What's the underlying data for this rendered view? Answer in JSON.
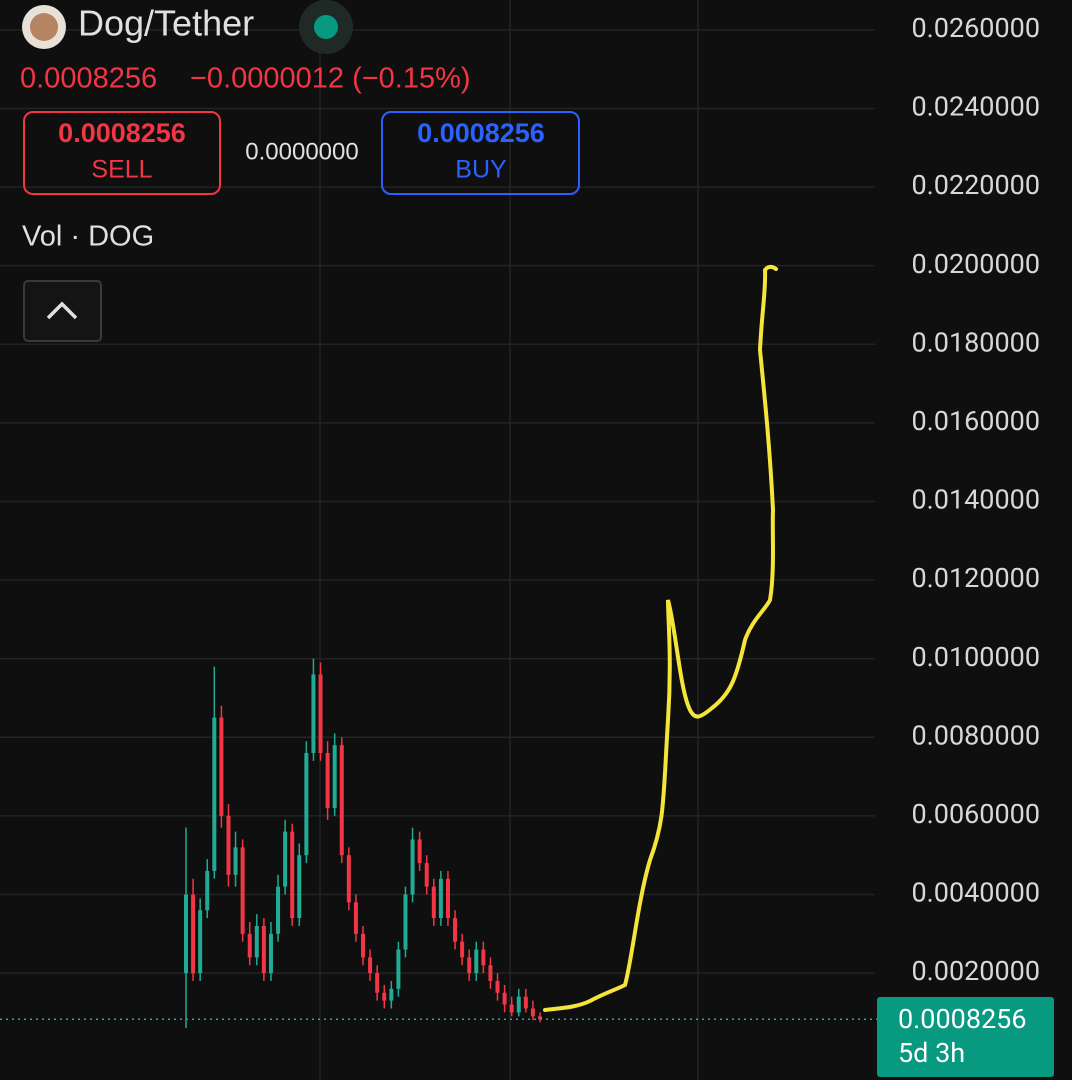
{
  "header": {
    "symbol": "Dog/Tether",
    "price": "0.0008256",
    "change": "−0.0000012 (−0.15%)",
    "sell_price": "0.0008256",
    "sell_label": "SELL",
    "spread": "0.0000000",
    "buy_price": "0.0008256",
    "buy_label": "BUY",
    "volume_label": "Vol · DOG"
  },
  "chart_data": {
    "type": "candlestick",
    "up_color": "#22ab94",
    "down_color": "#f23645",
    "open": [
      0.002,
      0.004,
      0.002,
      0.0036,
      0.0046,
      0.0085,
      0.006,
      0.0045,
      0.0052,
      0.003,
      0.0024,
      0.0032,
      0.002,
      0.003,
      0.0042,
      0.0056,
      0.0034,
      0.005,
      0.0076,
      0.0096,
      0.0076,
      0.0062,
      0.0078,
      0.005,
      0.0038,
      0.003,
      0.0024,
      0.002,
      0.0015,
      0.0013,
      0.0016,
      0.0026,
      0.004,
      0.0054,
      0.0048,
      0.0042,
      0.0034,
      0.0044,
      0.0034,
      0.0028,
      0.0024,
      0.002,
      0.0026,
      0.0022,
      0.0018,
      0.0015,
      0.0012,
      0.001,
      0.0014,
      0.0011,
      0.0009
    ],
    "high": [
      0.0057,
      0.0044,
      0.0039,
      0.0049,
      0.0098,
      0.0088,
      0.0063,
      0.0056,
      0.0054,
      0.0033,
      0.0035,
      0.0034,
      0.0033,
      0.0045,
      0.0059,
      0.0058,
      0.0053,
      0.0079,
      0.01,
      0.0099,
      0.0079,
      0.0081,
      0.008,
      0.0052,
      0.004,
      0.0032,
      0.0026,
      0.0022,
      0.0017,
      0.0018,
      0.0028,
      0.0042,
      0.0057,
      0.0056,
      0.005,
      0.0044,
      0.0046,
      0.0046,
      0.0036,
      0.003,
      0.0026,
      0.0028,
      0.0028,
      0.0024,
      0.002,
      0.0017,
      0.0014,
      0.0016,
      0.0016,
      0.0013,
      0.001
    ],
    "low": [
      0.0006,
      0.0018,
      0.0018,
      0.0034,
      0.0044,
      0.0057,
      0.0042,
      0.0042,
      0.0028,
      0.0022,
      0.0022,
      0.0018,
      0.0018,
      0.0028,
      0.004,
      0.0032,
      0.0032,
      0.0048,
      0.0074,
      0.0074,
      0.0059,
      0.006,
      0.0048,
      0.0036,
      0.0028,
      0.0022,
      0.0018,
      0.0013,
      0.0011,
      0.0011,
      0.0014,
      0.0024,
      0.0038,
      0.0046,
      0.004,
      0.0032,
      0.0032,
      0.0032,
      0.0026,
      0.0022,
      0.0018,
      0.0018,
      0.002,
      0.0016,
      0.0013,
      0.001,
      0.0009,
      0.0009,
      0.001,
      0.0008,
      0.00075
    ],
    "close": [
      0.004,
      0.002,
      0.0036,
      0.0046,
      0.0085,
      0.006,
      0.0045,
      0.0052,
      0.003,
      0.0024,
      0.0032,
      0.002,
      0.003,
      0.0042,
      0.0056,
      0.0034,
      0.005,
      0.0076,
      0.0096,
      0.0076,
      0.0062,
      0.0078,
      0.005,
      0.0038,
      0.003,
      0.0024,
      0.002,
      0.0015,
      0.0013,
      0.0016,
      0.0026,
      0.004,
      0.0054,
      0.0048,
      0.0042,
      0.0034,
      0.0044,
      0.0034,
      0.0028,
      0.0024,
      0.002,
      0.0026,
      0.0022,
      0.0018,
      0.0015,
      0.0012,
      0.001,
      0.0014,
      0.0011,
      0.0009,
      0.0008256
    ],
    "last_price": 0.0008256,
    "countdown": "5d 3h",
    "ylim": [
      -0.00072,
      0.02676
    ],
    "yticks": [
      {
        "value": 0.002,
        "label": "0.0020000"
      },
      {
        "value": 0.004,
        "label": "0.0040000"
      },
      {
        "value": 0.006,
        "label": "0.0060000"
      },
      {
        "value": 0.008,
        "label": "0.0080000"
      },
      {
        "value": 0.01,
        "label": "0.0100000"
      },
      {
        "value": 0.012,
        "label": "0.0120000"
      },
      {
        "value": 0.014,
        "label": "0.0140000"
      },
      {
        "value": 0.016,
        "label": "0.0160000"
      },
      {
        "value": 0.018,
        "label": "0.0180000"
      },
      {
        "value": 0.02,
        "label": "0.0200000"
      },
      {
        "value": 0.022,
        "label": "0.0220000"
      },
      {
        "value": 0.024,
        "label": "0.0240000"
      },
      {
        "value": 0.026,
        "label": "0.0260000"
      }
    ],
    "grid": true
  }
}
